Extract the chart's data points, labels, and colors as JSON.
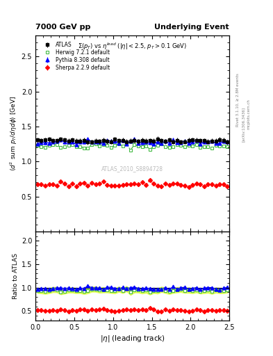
{
  "title_left": "7000 GeV pp",
  "title_right": "Underlying Event",
  "subtitle": "$\\Sigma(p_T)$ vs $\\eta^{lead}$ ($|\\eta| < 2.5$, $p_T > 0.1$ GeV)",
  "ylabel_main": "$\\langle d^2$ sum $p_T/d\\eta d\\phi\\rangle$ [GeV]",
  "ylabel_ratio": "Ratio to ATLAS",
  "xlabel": "$|\\eta|$ (leading track)",
  "watermark": "ATLAS_2010_S8894728",
  "right_label1": "Rivet 3.1.10, ≥ 2.8M events",
  "right_label2": "[arXiv:1306.3436]",
  "right_label3": "mcplots.cern.ch",
  "ylim_main": [
    0.0,
    2.8
  ],
  "ylim_ratio": [
    0.3,
    2.2
  ],
  "yticks_main": [
    0.5,
    1.0,
    1.5,
    2.0,
    2.5
  ],
  "yticks_ratio": [
    0.5,
    1.0,
    1.5,
    2.0
  ],
  "xlim": [
    0,
    2.5
  ],
  "atlas_color": "#000000",
  "herwig_color": "#44bb44",
  "pythia_color": "#0000ff",
  "sherpa_color": "#ff0000",
  "band_color": "#ddff44",
  "legend_entries": [
    "ATLAS",
    "Herwig 7.2.1 default",
    "Pythia 8.308 default",
    "Sherpa 2.2.9 default"
  ]
}
